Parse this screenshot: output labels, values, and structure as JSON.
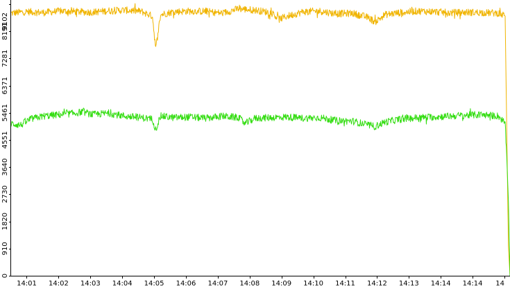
{
  "chart_data": {
    "type": "line",
    "title": "",
    "xlabel": "",
    "ylabel": "",
    "ylim": [
      0,
      9102
    ],
    "grid": false,
    "y_ticks": [
      0,
      910,
      1820,
      2730,
      3640,
      4551,
      5461,
      6371,
      7281,
      8191,
      9102
    ],
    "y_tick_labels": [
      "0",
      "910",
      "1820",
      "2730",
      "3640",
      "4551",
      "5461",
      "6371",
      "7281",
      "8191",
      "9102"
    ],
    "x_range_minutes": [
      0,
      15.35
    ],
    "x_ticks_minutes": [
      0.48,
      1.46,
      2.44,
      3.42,
      4.4,
      5.38,
      6.36,
      7.34,
      8.32,
      9.3,
      10.28,
      11.26,
      12.24,
      13.22,
      14.2,
      15.18
    ],
    "x_tick_labels": [
      "14:01",
      "14:02",
      "14:03",
      "14:04",
      "14:05",
      "14:06",
      "14:07",
      "14:08",
      "14:09",
      "14:10",
      "14:11",
      "14:12",
      "14:13",
      "14:14",
      "14:14",
      "14"
    ],
    "series": [
      {
        "color": "#f0b400",
        "x": [
          0,
          0.5,
          1,
          1.5,
          2,
          2.5,
          3,
          3.5,
          4,
          4.35,
          4.45,
          4.6,
          4.8,
          5,
          5.5,
          6,
          6.5,
          7,
          7.5,
          8,
          8.25,
          8.5,
          9,
          9.5,
          10,
          10.5,
          11,
          11.2,
          11.5,
          12,
          12.5,
          13,
          13.5,
          14,
          14.5,
          15,
          15.2,
          15.3,
          15.35
        ],
        "y": [
          8800,
          8850,
          8820,
          8870,
          8850,
          8830,
          8880,
          8900,
          8860,
          8700,
          7600,
          8750,
          8800,
          8850,
          8870,
          8860,
          8800,
          8950,
          8900,
          8820,
          8600,
          8700,
          8850,
          8870,
          8780,
          8800,
          8650,
          8500,
          8750,
          8820,
          8870,
          8850,
          8810,
          8830,
          8820,
          8800,
          8700,
          1000,
          0
        ]
      },
      {
        "color": "#33dd11",
        "x": [
          0,
          0.3,
          0.6,
          1,
          1.5,
          2,
          2.2,
          2.5,
          3,
          3.5,
          4,
          4.35,
          4.45,
          4.6,
          5,
          5.5,
          6,
          6.5,
          7,
          7.2,
          7.5,
          8,
          8.5,
          9,
          9.5,
          10,
          10.5,
          11,
          11.2,
          11.5,
          12,
          12.5,
          13,
          13.5,
          14,
          14.5,
          15,
          15.2,
          15.25,
          15.3,
          15.35
        ],
        "y": [
          5100,
          5050,
          5250,
          5350,
          5400,
          5450,
          5500,
          5400,
          5450,
          5350,
          5300,
          5250,
          4900,
          5350,
          5300,
          5320,
          5280,
          5350,
          5300,
          5100,
          5280,
          5300,
          5320,
          5280,
          5300,
          5200,
          5180,
          5050,
          5000,
          5150,
          5250,
          5300,
          5320,
          5350,
          5380,
          5400,
          5350,
          5100,
          4000,
          2500,
          0
        ]
      }
    ]
  }
}
